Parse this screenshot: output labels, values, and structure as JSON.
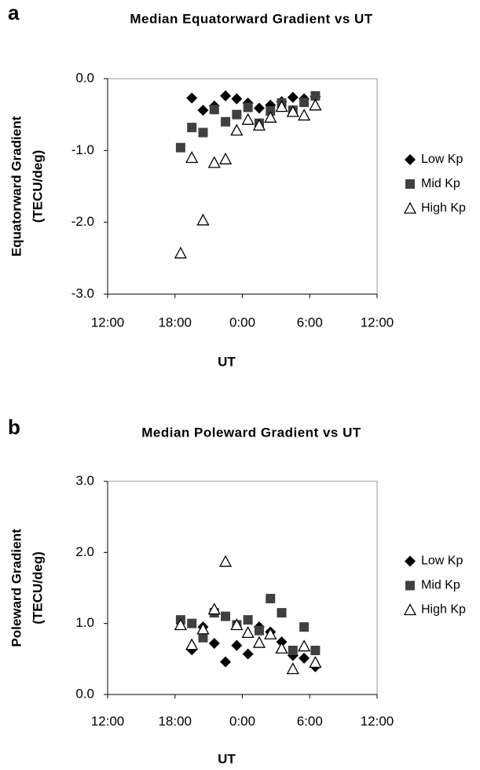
{
  "chart_data": [
    {
      "type": "scatter",
      "panel": "a",
      "title": "Median Equatorward Gradient vs UT",
      "xlabel": "UT",
      "ylabel": [
        "Equatorward Gradient",
        "(TECU/deg)"
      ],
      "xlim": [
        12,
        36
      ],
      "ylim": [
        -3,
        0
      ],
      "xticks": [
        {
          "value": 12,
          "label": "12:00"
        },
        {
          "value": 18,
          "label": "18:00"
        },
        {
          "value": 24,
          "label": "0:00"
        },
        {
          "value": 30,
          "label": "6:00"
        },
        {
          "value": 36,
          "label": "12:00"
        }
      ],
      "yticks": [
        {
          "value": 0,
          "label": "0.0"
        },
        {
          "value": -1,
          "label": "-1.0"
        },
        {
          "value": -2,
          "label": "-2.0"
        },
        {
          "value": -3,
          "label": "-3.0"
        }
      ],
      "grid": false,
      "legend": "right",
      "series": [
        {
          "name": "Low Kp",
          "marker": "diamond",
          "color": "#000000",
          "x": [
            19.5,
            20.5,
            21.5,
            22.5,
            23.5,
            24.5,
            25.5,
            26.5,
            27.5,
            28.5,
            29.5,
            30.5
          ],
          "values": [
            -0.27,
            -0.44,
            -0.38,
            -0.24,
            -0.28,
            -0.34,
            -0.41,
            -0.37,
            -0.32,
            -0.26,
            -0.28,
            -0.25
          ]
        },
        {
          "name": "Mid Kp",
          "marker": "square",
          "color": "#404040",
          "x": [
            18.5,
            19.5,
            20.5,
            21.5,
            22.5,
            23.5,
            24.5,
            25.5,
            26.5,
            27.5,
            28.5,
            29.5,
            30.5
          ],
          "values": [
            -0.96,
            -0.68,
            -0.75,
            -0.43,
            -0.6,
            -0.5,
            -0.4,
            -0.62,
            -0.45,
            -0.34,
            -0.44,
            -0.33,
            -0.24
          ]
        },
        {
          "name": "High Kp",
          "marker": "triangle",
          "color": "#000000",
          "x": [
            18.5,
            19.5,
            20.5,
            21.5,
            22.5,
            23.5,
            24.5,
            25.5,
            26.5,
            27.5,
            28.5,
            29.5,
            30.5
          ],
          "values": [
            -2.43,
            -1.1,
            -1.97,
            -1.17,
            -1.12,
            -0.72,
            -0.57,
            -0.65,
            -0.54,
            -0.39,
            -0.46,
            -0.51,
            -0.37
          ]
        }
      ]
    },
    {
      "type": "scatter",
      "panel": "b",
      "title": "Median Poleward Gradient vs UT",
      "xlabel": "UT",
      "ylabel": [
        "Poleward Gradient",
        "(TECU/deg)"
      ],
      "xlim": [
        12,
        36
      ],
      "ylim": [
        0,
        3
      ],
      "xticks": [
        {
          "value": 12,
          "label": "12:00"
        },
        {
          "value": 18,
          "label": "18:00"
        },
        {
          "value": 24,
          "label": "0:00"
        },
        {
          "value": 30,
          "label": "6:00"
        },
        {
          "value": 36,
          "label": "12:00"
        }
      ],
      "yticks": [
        {
          "value": 0,
          "label": "0.0"
        },
        {
          "value": 1,
          "label": "1.0"
        },
        {
          "value": 2,
          "label": "2.0"
        },
        {
          "value": 3,
          "label": "3.0"
        }
      ],
      "grid": false,
      "legend": "right",
      "series": [
        {
          "name": "Low Kp",
          "marker": "diamond",
          "color": "#000000",
          "x": [
            19.5,
            20.5,
            21.5,
            22.5,
            23.5,
            24.5,
            25.5,
            26.5,
            27.5,
            28.5,
            29.5,
            30.5
          ],
          "values": [
            0.63,
            0.95,
            0.72,
            0.46,
            0.69,
            0.57,
            0.95,
            0.88,
            0.74,
            0.55,
            0.51,
            0.39
          ]
        },
        {
          "name": "Mid Kp",
          "marker": "square",
          "color": "#404040",
          "x": [
            18.5,
            19.5,
            20.5,
            21.5,
            22.5,
            23.5,
            24.5,
            25.5,
            26.5,
            27.5,
            28.5,
            29.5,
            30.5
          ],
          "values": [
            1.05,
            1.0,
            0.8,
            1.15,
            1.1,
            0.98,
            1.05,
            0.9,
            1.35,
            1.15,
            0.62,
            0.95,
            0.62
          ]
        },
        {
          "name": "High Kp",
          "marker": "triangle",
          "color": "#000000",
          "x": [
            18.5,
            19.5,
            20.5,
            21.5,
            22.5,
            23.5,
            24.5,
            25.5,
            26.5,
            27.5,
            28.5,
            29.5,
            30.5
          ],
          "values": [
            0.98,
            0.7,
            0.92,
            1.2,
            1.87,
            0.98,
            0.87,
            0.73,
            0.85,
            0.65,
            0.36,
            0.68,
            0.45
          ]
        }
      ]
    }
  ]
}
